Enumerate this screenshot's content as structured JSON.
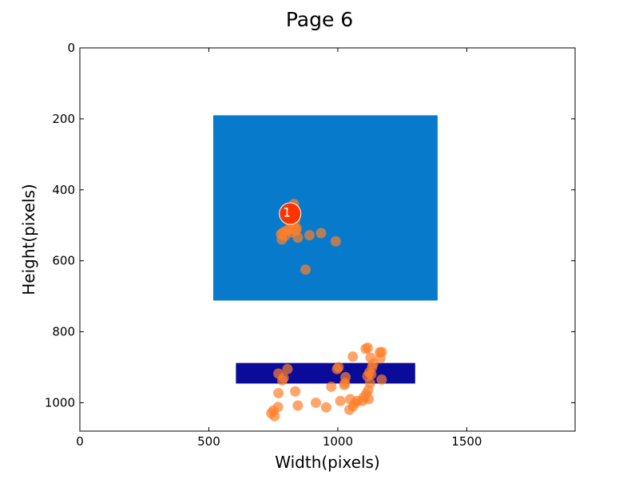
{
  "chart_data": {
    "type": "scatter",
    "title": "Page 6",
    "xlabel": "Width(pixels)",
    "ylabel": "Height(pixels)",
    "xlim": [
      0,
      1920
    ],
    "ylim": [
      1080,
      0
    ],
    "y_inverted": true,
    "grid": false,
    "xticks": [
      0,
      500,
      1000,
      1500
    ],
    "yticks": [
      0,
      200,
      400,
      600,
      800,
      1000
    ],
    "regions": [
      {
        "x0": 517,
        "x1": 1387,
        "y0": 190,
        "y1": 712,
        "color": "#087ACB"
      },
      {
        "x0": 605,
        "x1": 1300,
        "y0": 888,
        "y1": 946,
        "color": "#0B0B99"
      }
    ],
    "gaze_points": {
      "color": "#FF7F2A",
      "points": [
        [
          830,
          440
        ],
        [
          826,
          450
        ],
        [
          832,
          462
        ],
        [
          822,
          476
        ],
        [
          835,
          485
        ],
        [
          818,
          495
        ],
        [
          828,
          502
        ],
        [
          840,
          508
        ],
        [
          812,
          512
        ],
        [
          800,
          515
        ],
        [
          788,
          520
        ],
        [
          780,
          525
        ],
        [
          795,
          530
        ],
        [
          822,
          520
        ],
        [
          838,
          515
        ],
        [
          845,
          535
        ],
        [
          783,
          540
        ],
        [
          890,
          528
        ],
        [
          935,
          522
        ],
        [
          992,
          545
        ],
        [
          875,
          625
        ],
        [
          1108,
          848
        ],
        [
          1116,
          845
        ],
        [
          1127,
          873
        ],
        [
          1163,
          858
        ],
        [
          1170,
          857
        ],
        [
          1165,
          875
        ],
        [
          1137,
          890
        ],
        [
          1133,
          900
        ],
        [
          1122,
          915
        ],
        [
          1130,
          920
        ],
        [
          1115,
          925
        ],
        [
          1170,
          935
        ],
        [
          1125,
          945
        ],
        [
          1118,
          965
        ],
        [
          1110,
          975
        ],
        [
          1100,
          985
        ],
        [
          1120,
          990
        ],
        [
          1095,
          995
        ],
        [
          1068,
          1000
        ],
        [
          1075,
          995
        ],
        [
          1048,
          990
        ],
        [
          1010,
          995
        ],
        [
          1060,
          1010
        ],
        [
          1045,
          1020
        ],
        [
          1058,
          870
        ],
        [
          1003,
          900
        ],
        [
          997,
          905
        ],
        [
          1030,
          928
        ],
        [
          1028,
          945
        ],
        [
          1025,
          950
        ],
        [
          975,
          955
        ],
        [
          805,
          905
        ],
        [
          770,
          918
        ],
        [
          790,
          930
        ],
        [
          785,
          937
        ],
        [
          835,
          968
        ],
        [
          770,
          973
        ],
        [
          845,
          1008
        ],
        [
          915,
          1000
        ],
        [
          955,
          1013
        ],
        [
          768,
          1012
        ],
        [
          742,
          1030
        ],
        [
          750,
          1022
        ],
        [
          755,
          1038
        ]
      ]
    },
    "fixation": {
      "x": 815,
      "y": 467,
      "label": "1",
      "color": "#FF3300"
    }
  }
}
